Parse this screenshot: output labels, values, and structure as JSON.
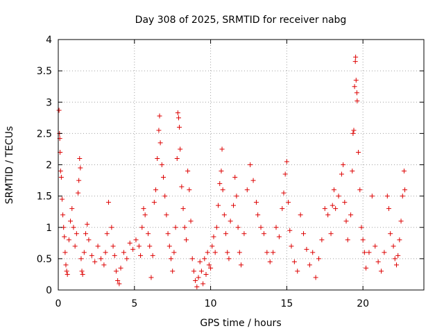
{
  "chart_data": {
    "type": "scatter",
    "title": "Day 308 of 2025, SRMTID for receiver nabg",
    "xlabel": "GPS time / hours",
    "ylabel": "SRMTID / TECUs",
    "xlim": [
      0,
      24
    ],
    "ylim": [
      0,
      4
    ],
    "xticks": [
      0,
      5,
      10,
      15,
      20
    ],
    "xtick_labels": [
      "0",
      "5",
      "10",
      "15",
      "20"
    ],
    "yticks": [
      0,
      0.5,
      1,
      1.5,
      2,
      2.5,
      3,
      3.5,
      4
    ],
    "ytick_labels": [
      "0",
      "0.5",
      "1",
      "1.5",
      "2",
      "2.5",
      "3",
      "3.5",
      "4"
    ],
    "grid": true,
    "marker": "plus",
    "color": "#dd0000",
    "series": [
      {
        "name": "SRMTID",
        "points": [
          [
            0.05,
            2.87
          ],
          [
            0.08,
            2.5
          ],
          [
            0.1,
            2.42
          ],
          [
            0.12,
            2.2
          ],
          [
            0.15,
            1.9
          ],
          [
            0.2,
            1.8
          ],
          [
            0.25,
            1.45
          ],
          [
            0.3,
            1.2
          ],
          [
            0.35,
            1.0
          ],
          [
            0.4,
            0.85
          ],
          [
            0.45,
            0.6
          ],
          [
            0.5,
            0.4
          ],
          [
            0.55,
            0.3
          ],
          [
            0.6,
            0.25
          ],
          [
            0.7,
            0.8
          ],
          [
            0.8,
            1.1
          ],
          [
            0.9,
            1.3
          ],
          [
            1.0,
            1.0
          ],
          [
            1.1,
            0.7
          ],
          [
            1.2,
            0.9
          ],
          [
            1.3,
            1.55
          ],
          [
            1.35,
            1.75
          ],
          [
            1.4,
            2.1
          ],
          [
            1.45,
            1.95
          ],
          [
            1.5,
            0.5
          ],
          [
            1.55,
            0.3
          ],
          [
            1.6,
            0.25
          ],
          [
            1.7,
            0.6
          ],
          [
            1.8,
            0.9
          ],
          [
            1.9,
            1.05
          ],
          [
            2.0,
            0.8
          ],
          [
            2.2,
            0.55
          ],
          [
            2.4,
            0.45
          ],
          [
            2.6,
            0.7
          ],
          [
            2.8,
            0.5
          ],
          [
            3.0,
            0.4
          ],
          [
            3.1,
            0.6
          ],
          [
            3.2,
            0.9
          ],
          [
            3.3,
            1.4
          ],
          [
            3.5,
            1.0
          ],
          [
            3.6,
            0.7
          ],
          [
            3.7,
            0.55
          ],
          [
            3.8,
            0.3
          ],
          [
            3.9,
            0.15
          ],
          [
            4.0,
            0.1
          ],
          [
            4.1,
            0.35
          ],
          [
            4.3,
            0.6
          ],
          [
            4.5,
            0.5
          ],
          [
            4.7,
            0.75
          ],
          [
            4.9,
            0.65
          ],
          [
            5.1,
            0.8
          ],
          [
            5.3,
            0.7
          ],
          [
            5.4,
            0.55
          ],
          [
            5.5,
            1.0
          ],
          [
            5.6,
            1.3
          ],
          [
            5.7,
            1.2
          ],
          [
            5.9,
            0.9
          ],
          [
            6.0,
            0.7
          ],
          [
            6.1,
            0.2
          ],
          [
            6.2,
            0.55
          ],
          [
            6.3,
            1.4
          ],
          [
            6.4,
            1.6
          ],
          [
            6.5,
            2.1
          ],
          [
            6.6,
            2.55
          ],
          [
            6.65,
            2.78
          ],
          [
            6.7,
            2.35
          ],
          [
            6.8,
            2.0
          ],
          [
            6.9,
            1.8
          ],
          [
            7.0,
            1.5
          ],
          [
            7.1,
            1.2
          ],
          [
            7.2,
            0.9
          ],
          [
            7.3,
            0.7
          ],
          [
            7.4,
            0.5
          ],
          [
            7.5,
            0.3
          ],
          [
            7.6,
            0.6
          ],
          [
            7.7,
            1.0
          ],
          [
            7.8,
            2.1
          ],
          [
            7.85,
            2.83
          ],
          [
            7.9,
            2.75
          ],
          [
            7.95,
            2.6
          ],
          [
            8.0,
            2.25
          ],
          [
            8.1,
            1.65
          ],
          [
            8.2,
            1.3
          ],
          [
            8.3,
            1.0
          ],
          [
            8.4,
            0.8
          ],
          [
            8.5,
            1.9
          ],
          [
            8.6,
            1.6
          ],
          [
            8.7,
            1.1
          ],
          [
            8.8,
            0.5
          ],
          [
            8.9,
            0.3
          ],
          [
            9.0,
            0.15
          ],
          [
            9.1,
            0.05
          ],
          [
            9.2,
            0.2
          ],
          [
            9.3,
            0.45
          ],
          [
            9.4,
            0.3
          ],
          [
            9.5,
            0.1
          ],
          [
            9.6,
            0.5
          ],
          [
            9.7,
            0.25
          ],
          [
            9.8,
            0.6
          ],
          [
            9.9,
            0.4
          ],
          [
            10.0,
            0.35
          ],
          [
            10.1,
            0.7
          ],
          [
            10.2,
            0.85
          ],
          [
            10.3,
            0.6
          ],
          [
            10.4,
            1.0
          ],
          [
            10.5,
            1.35
          ],
          [
            10.6,
            1.7
          ],
          [
            10.7,
            1.9
          ],
          [
            10.75,
            2.25
          ],
          [
            10.8,
            1.6
          ],
          [
            10.9,
            1.2
          ],
          [
            11.0,
            0.9
          ],
          [
            11.1,
            0.6
          ],
          [
            11.2,
            0.5
          ],
          [
            11.3,
            1.1
          ],
          [
            11.5,
            1.35
          ],
          [
            11.6,
            1.8
          ],
          [
            11.7,
            1.5
          ],
          [
            11.8,
            1.0
          ],
          [
            11.9,
            0.6
          ],
          [
            12.0,
            0.4
          ],
          [
            12.2,
            0.9
          ],
          [
            12.4,
            1.6
          ],
          [
            12.6,
            2.0
          ],
          [
            12.8,
            1.75
          ],
          [
            13.0,
            1.4
          ],
          [
            13.1,
            1.2
          ],
          [
            13.3,
            1.0
          ],
          [
            13.5,
            0.9
          ],
          [
            13.7,
            0.6
          ],
          [
            13.9,
            0.45
          ],
          [
            14.1,
            0.6
          ],
          [
            14.3,
            1.0
          ],
          [
            14.5,
            0.85
          ],
          [
            14.7,
            1.3
          ],
          [
            14.8,
            1.55
          ],
          [
            14.9,
            1.85
          ],
          [
            15.0,
            2.05
          ],
          [
            15.1,
            1.4
          ],
          [
            15.2,
            0.95
          ],
          [
            15.3,
            0.7
          ],
          [
            15.5,
            0.45
          ],
          [
            15.7,
            0.3
          ],
          [
            15.9,
            1.2
          ],
          [
            16.1,
            0.9
          ],
          [
            16.3,
            0.65
          ],
          [
            16.5,
            0.4
          ],
          [
            16.7,
            0.6
          ],
          [
            16.9,
            0.2
          ],
          [
            17.1,
            0.5
          ],
          [
            17.3,
            0.8
          ],
          [
            17.5,
            1.3
          ],
          [
            17.7,
            1.2
          ],
          [
            17.9,
            0.9
          ],
          [
            18.0,
            1.35
          ],
          [
            18.1,
            1.6
          ],
          [
            18.2,
            1.3
          ],
          [
            18.4,
            1.5
          ],
          [
            18.6,
            1.85
          ],
          [
            18.7,
            2.0
          ],
          [
            18.8,
            1.4
          ],
          [
            18.9,
            1.1
          ],
          [
            19.0,
            0.8
          ],
          [
            19.2,
            1.2
          ],
          [
            19.3,
            1.9
          ],
          [
            19.35,
            2.5
          ],
          [
            19.4,
            2.55
          ],
          [
            19.45,
            3.25
          ],
          [
            19.5,
            3.65
          ],
          [
            19.52,
            3.72
          ],
          [
            19.55,
            3.35
          ],
          [
            19.6,
            3.15
          ],
          [
            19.62,
            3.02
          ],
          [
            19.7,
            2.2
          ],
          [
            19.8,
            1.6
          ],
          [
            19.9,
            1.0
          ],
          [
            20.0,
            0.8
          ],
          [
            20.1,
            0.6
          ],
          [
            20.2,
            0.35
          ],
          [
            20.4,
            0.6
          ],
          [
            20.6,
            1.5
          ],
          [
            20.8,
            0.7
          ],
          [
            21.0,
            0.45
          ],
          [
            21.2,
            0.3
          ],
          [
            21.4,
            0.6
          ],
          [
            21.6,
            1.5
          ],
          [
            21.7,
            1.3
          ],
          [
            21.8,
            0.9
          ],
          [
            22.0,
            0.7
          ],
          [
            22.1,
            0.5
          ],
          [
            22.2,
            0.4
          ],
          [
            22.3,
            0.55
          ],
          [
            22.4,
            0.8
          ],
          [
            22.5,
            1.1
          ],
          [
            22.6,
            1.5
          ],
          [
            22.7,
            1.9
          ],
          [
            22.75,
            1.6
          ]
        ]
      }
    ]
  }
}
